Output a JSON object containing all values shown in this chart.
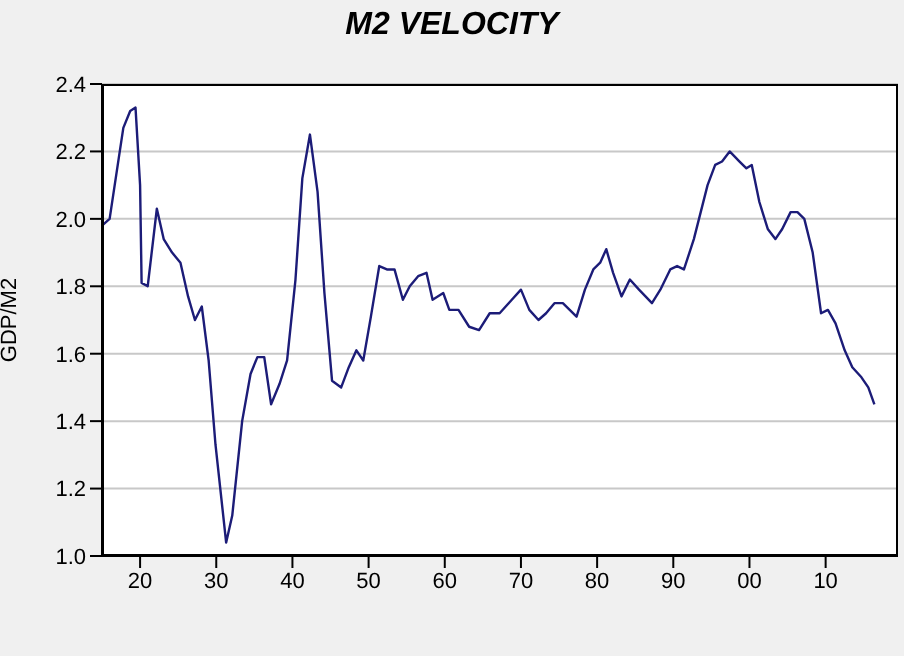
{
  "chart_data": {
    "type": "line",
    "title": "M2 VELOCITY",
    "ylabel": "GDP/M2",
    "x": [
      1915,
      1916,
      1917.2,
      1917.8,
      1918.7,
      1919.4,
      1920,
      1920.2,
      1921,
      1922.2,
      1923.1,
      1924.2,
      1925.3,
      1926.3,
      1927.2,
      1928.1,
      1929,
      1929.9,
      1931.3,
      1932.1,
      1933.4,
      1934.5,
      1935.4,
      1936.3,
      1937.2,
      1938.3,
      1939.3,
      1940.4,
      1941.3,
      1942.3,
      1943.3,
      1944.2,
      1945.2,
      1946.4,
      1947.4,
      1948.4,
      1949.3,
      1950.3,
      1951.4,
      1952.4,
      1953.4,
      1954.5,
      1955.4,
      1956.5,
      1957.6,
      1958.4,
      1959.8,
      1960.6,
      1961.8,
      1963.2,
      1964.5,
      1965.9,
      1967.2,
      1968.8,
      1970,
      1971.1,
      1972.3,
      1973.3,
      1974.4,
      1975.5,
      1977.3,
      1978.4,
      1979.5,
      1980.4,
      1981.2,
      1982.1,
      1983.2,
      1984.3,
      1985.5,
      1987.2,
      1988.3,
      1989.6,
      1990.5,
      1991.4,
      1992.7,
      1994.5,
      1995.5,
      1996.4,
      1997.4,
      1998.7,
      1999.6,
      2000.3,
      2001.3,
      2002.4,
      2003.4,
      2004.3,
      2005.4,
      2006.3,
      2007.2,
      2008.3,
      2009.4,
      2010.3,
      2011.3,
      2012.5,
      2013.5,
      2014.7,
      2015.6,
      2016.4
    ],
    "series": [
      {
        "color": "#1c1c78",
        "values": [
          1.98,
          2.0,
          2.18,
          2.27,
          2.32,
          2.33,
          2.1,
          1.81,
          1.8,
          2.03,
          1.94,
          1.9,
          1.87,
          1.77,
          1.7,
          1.74,
          1.58,
          1.33,
          1.04,
          1.12,
          1.4,
          1.54,
          1.59,
          1.59,
          1.45,
          1.51,
          1.58,
          1.82,
          2.12,
          2.25,
          2.08,
          1.78,
          1.52,
          1.5,
          1.56,
          1.61,
          1.58,
          1.71,
          1.86,
          1.85,
          1.85,
          1.76,
          1.8,
          1.83,
          1.84,
          1.76,
          1.78,
          1.73,
          1.73,
          1.68,
          1.67,
          1.72,
          1.72,
          1.76,
          1.79,
          1.73,
          1.7,
          1.72,
          1.75,
          1.75,
          1.71,
          1.79,
          1.85,
          1.87,
          1.91,
          1.84,
          1.77,
          1.82,
          1.79,
          1.75,
          1.79,
          1.85,
          1.86,
          1.85,
          1.94,
          2.1,
          2.16,
          2.17,
          2.2,
          2.17,
          2.15,
          2.16,
          2.05,
          1.97,
          1.94,
          1.97,
          2.02,
          2.02,
          2.0,
          1.9,
          1.72,
          1.73,
          1.69,
          1.61,
          1.56,
          1.53,
          1.5,
          1.45
        ]
      }
    ],
    "xlim": [
      1915,
      2019.5
    ],
    "xticks": [
      {
        "value": 1920,
        "label": "20"
      },
      {
        "value": 1930,
        "label": "30"
      },
      {
        "value": 1940,
        "label": "40"
      },
      {
        "value": 1950,
        "label": "50"
      },
      {
        "value": 1960,
        "label": "60"
      },
      {
        "value": 1970,
        "label": "70"
      },
      {
        "value": 1980,
        "label": "80"
      },
      {
        "value": 1990,
        "label": "90"
      },
      {
        "value": 2000,
        "label": "00"
      },
      {
        "value": 2010,
        "label": "10"
      }
    ],
    "ylim": [
      1.0,
      2.4
    ],
    "yticks": [
      {
        "value": 1,
        "label": "1.0"
      },
      {
        "value": 1.2,
        "label": "1.2"
      },
      {
        "value": 1.4,
        "label": "1.4"
      },
      {
        "value": 1.6,
        "label": "1.6"
      },
      {
        "value": 1.8,
        "label": "1.8"
      },
      {
        "value": 2,
        "label": "2.0"
      },
      {
        "value": 2.2,
        "label": "2.2"
      },
      {
        "value": 2.4,
        "label": "2.4"
      }
    ],
    "grid": "y",
    "legend": false,
    "marker": "none",
    "line_style": "solid"
  }
}
